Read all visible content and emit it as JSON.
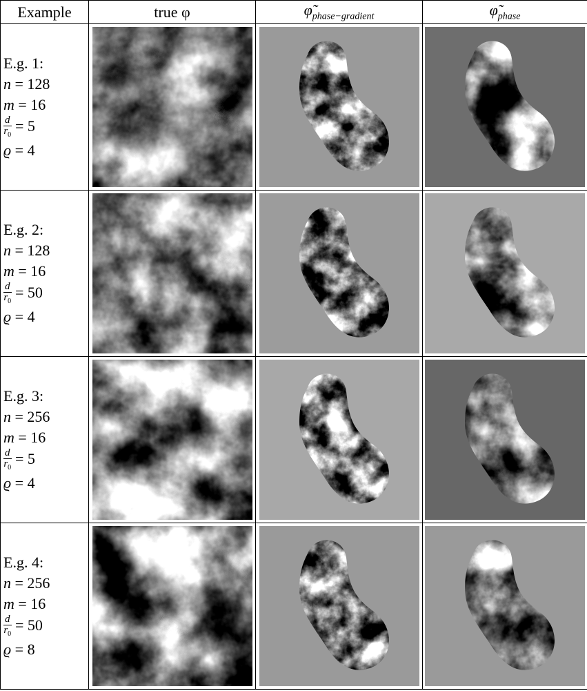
{
  "header": [
    "Example",
    "true φ",
    {
      "symbol": "φ̃",
      "sub": "phase−gradient"
    },
    {
      "symbol": "φ̃",
      "sub": "phase"
    }
  ],
  "rows": [
    {
      "label": "E.g. 1:",
      "n": {
        "var": "n",
        "rhs": "= 128"
      },
      "m": {
        "var": "m",
        "rhs": "= 16"
      },
      "frac": {
        "num": "d",
        "den": "r",
        "den_sub": "0",
        "rhs": "= 5"
      },
      "rho": {
        "var": "ϱ",
        "rhs": "= 4"
      }
    },
    {
      "label": "E.g. 2:",
      "n": {
        "var": "n",
        "rhs": "= 128"
      },
      "m": {
        "var": "m",
        "rhs": "= 16"
      },
      "frac": {
        "num": "d",
        "den": "r",
        "den_sub": "0",
        "rhs": "= 50"
      },
      "rho": {
        "var": "ϱ",
        "rhs": "= 4"
      }
    },
    {
      "label": "E.g. 3:",
      "n": {
        "var": "n",
        "rhs": "= 256"
      },
      "m": {
        "var": "m",
        "rhs": "= 16"
      },
      "frac": {
        "num": "d",
        "den": "r",
        "den_sub": "0",
        "rhs": "= 5"
      },
      "rho": {
        "var": "ϱ",
        "rhs": "= 4"
      }
    },
    {
      "label": "E.g. 4:",
      "n": {
        "var": "n",
        "rhs": "= 256"
      },
      "m": {
        "var": "m",
        "rhs": "= 16"
      },
      "frac": {
        "num": "d",
        "den": "r",
        "den_sub": "0",
        "rhs": "= 50"
      },
      "rho": {
        "var": "ϱ",
        "rhs": "= 8"
      }
    }
  ]
}
